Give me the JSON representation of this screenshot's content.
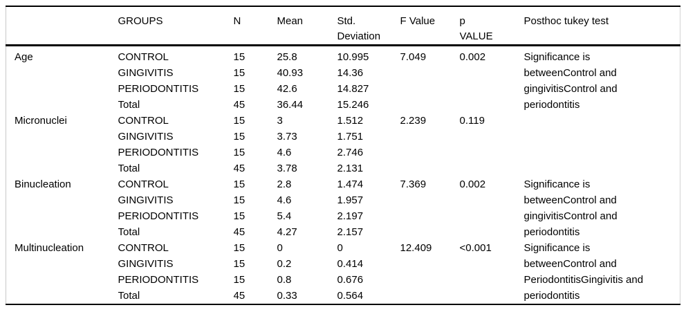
{
  "table": {
    "columns": [
      {
        "key": "parameter",
        "label": ""
      },
      {
        "key": "group",
        "label": "GROUPS"
      },
      {
        "key": "n",
        "label": "N"
      },
      {
        "key": "mean",
        "label": "Mean"
      },
      {
        "key": "sd",
        "label": [
          "Std.",
          "Deviation"
        ]
      },
      {
        "key": "f",
        "label": "F Value"
      },
      {
        "key": "p",
        "label": [
          "p",
          "VALUE"
        ]
      },
      {
        "key": "posthoc",
        "label": "Posthoc tukey test"
      }
    ],
    "blocks": [
      {
        "parameter": "Age",
        "f": "7.049",
        "p": "0.002",
        "posthoc": [
          "Significance is",
          "betweenControl and",
          "gingivitisControl and",
          "periodontitis"
        ],
        "groups": [
          {
            "group": "CONTROL",
            "n": "15",
            "mean": "25.8",
            "sd": "10.995"
          },
          {
            "group": "GINGIVITIS",
            "n": "15",
            "mean": "40.93",
            "sd": "14.36"
          },
          {
            "group": "PERIODONTITIS",
            "n": "15",
            "mean": "42.6",
            "sd": "14.827"
          },
          {
            "group": "Total",
            "n": "45",
            "mean": "36.44",
            "sd": "15.246"
          }
        ]
      },
      {
        "parameter": "Micronuclei",
        "f": "2.239",
        "p": "0.119",
        "posthoc": [],
        "groups": [
          {
            "group": "CONTROL",
            "n": "15",
            "mean": "3",
            "sd": "1.512"
          },
          {
            "group": "GINGIVITIS",
            "n": "15",
            "mean": "3.73",
            "sd": "1.751"
          },
          {
            "group": "PERIODONTITIS",
            "n": "15",
            "mean": "4.6",
            "sd": "2.746"
          },
          {
            "group": "Total",
            "n": "45",
            "mean": "3.78",
            "sd": "2.131"
          }
        ]
      },
      {
        "parameter": "Binucleation",
        "f": "7.369",
        "p": "0.002",
        "posthoc": [
          "Significance is",
          "betweenControl and",
          "gingivitisControl and",
          "periodontitis"
        ],
        "groups": [
          {
            "group": "CONTROL",
            "n": "15",
            "mean": "2.8",
            "sd": "1.474"
          },
          {
            "group": "GINGIVITIS",
            "n": "15",
            "mean": "4.6",
            "sd": "1.957"
          },
          {
            "group": "PERIODONTITIS",
            "n": "15",
            "mean": "5.4",
            "sd": "2.197"
          },
          {
            "group": "Total",
            "n": "45",
            "mean": "4.27",
            "sd": "2.157"
          }
        ]
      },
      {
        "parameter": "Multinucleation",
        "f": "12.409",
        "p": "<0.001",
        "posthoc": [
          "Significance is",
          "betweenControl and",
          "PeriodontitisGingivitis and",
          "periodontitis"
        ],
        "groups": [
          {
            "group": "CONTROL",
            "n": "15",
            "mean": "0",
            "sd": "0"
          },
          {
            "group": "GINGIVITIS",
            "n": "15",
            "mean": "0.2",
            "sd": "0.414"
          },
          {
            "group": "PERIODONTITIS",
            "n": "15",
            "mean": "0.8",
            "sd": "0.676"
          },
          {
            "group": "Total",
            "n": "45",
            "mean": "0.33",
            "sd": "0.564"
          }
        ]
      }
    ]
  }
}
